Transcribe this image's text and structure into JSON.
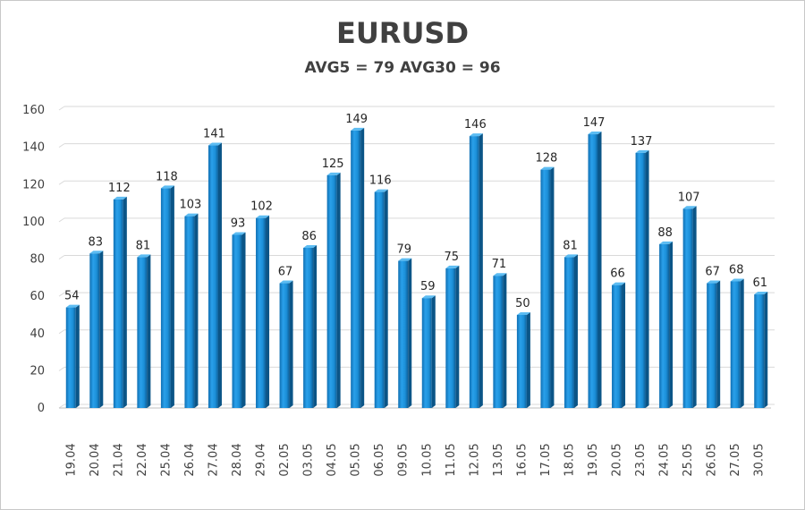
{
  "chart_data": {
    "type": "bar",
    "title": "EURUSD",
    "subtitle": "AVG5 = 79 AVG30 = 96",
    "categories": [
      "19.04",
      "20.04",
      "21.04",
      "22.04",
      "25.04",
      "26.04",
      "27.04",
      "28.04",
      "29.04",
      "02.05",
      "03.05",
      "04.05",
      "05.05",
      "06.05",
      "09.05",
      "10.05",
      "11.05",
      "12.05",
      "13.05",
      "16.05",
      "17.05",
      "18.05",
      "19.05",
      "20.05",
      "23.05",
      "24.05",
      "25.05",
      "26.05",
      "27.05",
      "30.05"
    ],
    "values": [
      54,
      83,
      112,
      81,
      118,
      103,
      141,
      93,
      102,
      67,
      86,
      125,
      149,
      116,
      79,
      59,
      75,
      146,
      71,
      50,
      128,
      81,
      147,
      66,
      137,
      88,
      107,
      67,
      68,
      61
    ],
    "ylim": [
      0,
      160
    ],
    "yticks": [
      0,
      20,
      40,
      60,
      80,
      100,
      120,
      140,
      160
    ],
    "grid": true,
    "legend": "none",
    "bar_color": "#1a8fd6"
  }
}
